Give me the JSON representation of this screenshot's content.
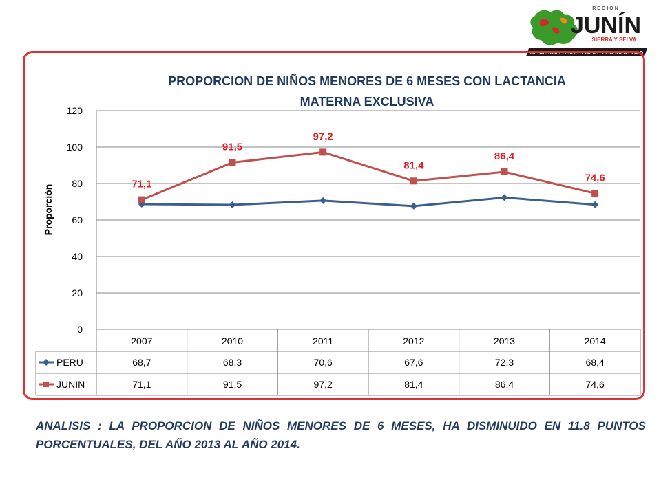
{
  "brand": {
    "top_label": "REGIÓN",
    "name": "JUNÍN",
    "sub": "SIERRA Y SELVA",
    "tagline": "DESARROLLO SOSTENIBLE CON IDENTIDAD",
    "colors": {
      "green": "#3a9a2a",
      "red": "#d8262c",
      "orange": "#f08a1e",
      "dark": "#1b1b1b"
    }
  },
  "chart_data": {
    "type": "line",
    "title": "PROPORCION DE NIÑOS MENORES DE 6 MESES CON LACTANCIA MATERNA EXCLUSIVA",
    "title_lines": [
      "PROPORCION DE NIÑOS MENORES DE 6 MESES CON LACTANCIA",
      "MATERNA EXCLUSIVA"
    ],
    "ylabel": "Proporción",
    "xlabel": "",
    "categories": [
      "2007",
      "2010",
      "2011",
      "2012",
      "2013",
      "2014"
    ],
    "ylim": [
      0,
      120
    ],
    "yticks": [
      0,
      20,
      40,
      60,
      80,
      100,
      120
    ],
    "grid": true,
    "legend": "data-table",
    "series": [
      {
        "name": "PERU",
        "values": [
          68.7,
          68.3,
          70.6,
          67.6,
          72.3,
          68.4
        ],
        "color": "#3c5f8f",
        "marker": "diamond",
        "labels": false
      },
      {
        "name": "JUNIN",
        "values": [
          71.1,
          91.5,
          97.2,
          81.4,
          86.4,
          74.6
        ],
        "color": "#c0504d",
        "marker": "square",
        "labels": true,
        "label_color": "#e02020"
      }
    ],
    "table": {
      "rows": [
        {
          "name": "PERU",
          "values": [
            "68,7",
            "68,3",
            "70,6",
            "67,6",
            "72,3",
            "68,4"
          ]
        },
        {
          "name": "JUNIN",
          "values": [
            "71,1",
            "91,5",
            "97,2",
            "81,4",
            "86,4",
            "74,6"
          ]
        }
      ]
    }
  },
  "analysis": {
    "text": "ANALISIS : LA PROPORCION DE NIÑOS MENORES DE 6 MESES, HA DISMINUIDO EN 11.8 PUNTOS PORCENTUALES, DEL AÑO 2013 AL AÑO 2014."
  }
}
